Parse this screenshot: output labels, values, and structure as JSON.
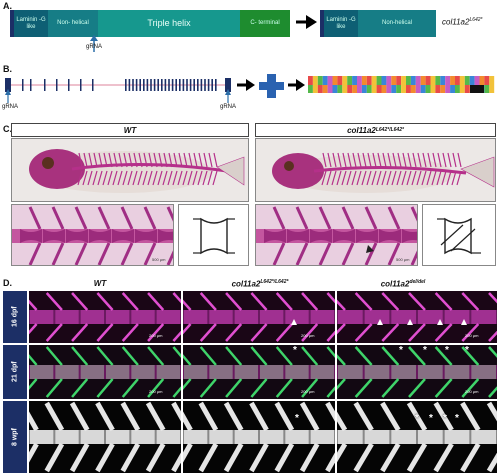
{
  "panelA": {
    "label": "A.",
    "domains": [
      "Laminin -G like",
      "Non- helical",
      "Triple helix",
      "C- terminal"
    ],
    "truncated_domains": [
      "Laminin -G like",
      "Non-helical"
    ],
    "grna": "gRNA",
    "allele_base": "col11a2",
    "allele_sup": "L642*"
  },
  "panelB": {
    "label": "B.",
    "grna_left": "gRNA",
    "grna_right": "gRNA"
  },
  "panelC": {
    "label": "C.",
    "wt": "WT",
    "mut_base": "col11a2",
    "mut_sup": "L642*/L642*",
    "scale_text": "500 μm"
  },
  "panelD": {
    "label": "D.",
    "col_wt": "WT",
    "col_mut_base": "col11a2",
    "col_mut_sup": "L642*/L642*",
    "col_del_base": "col11a2",
    "col_del_sup": "del/del",
    "rows": [
      "16 dpf",
      "21 dpf",
      "8 wpf"
    ],
    "scale": "200 μm",
    "star": "*"
  },
  "colors": {
    "navy": "#1c2f66",
    "teal_dark": "#0e5f74",
    "teal": "#16988e",
    "green": "#1e8c2f",
    "magenta": "#b0308f",
    "arrow": "#1a1a1a"
  }
}
